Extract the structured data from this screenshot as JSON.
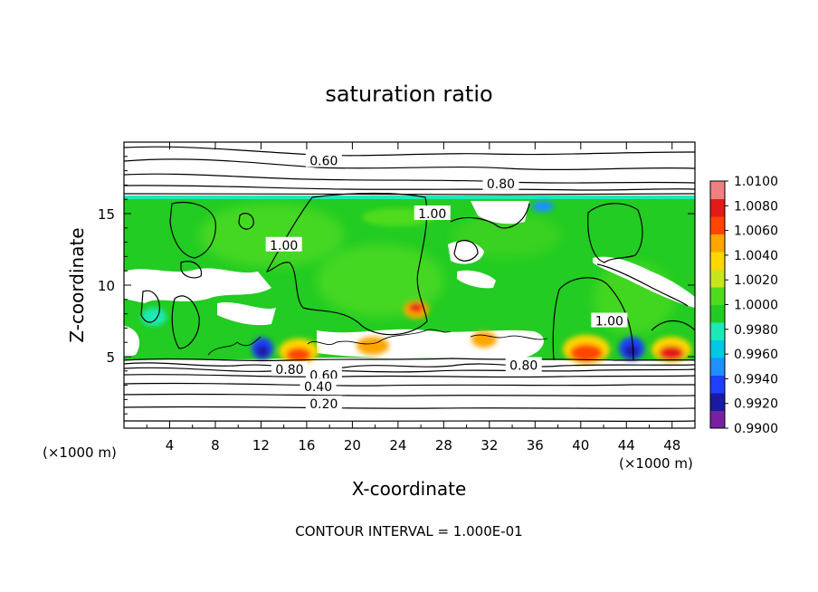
{
  "chart_data": {
    "type": "heatmap",
    "title": "saturation ratio",
    "xlabel": "X-coordinate",
    "ylabel": "Z-coordinate",
    "x_unit_note": "(×1000 m)",
    "y_unit_note": "(×1000 m)",
    "footer": "CONTOUR INTERVAL = 1.000E-01",
    "xlim": [
      0,
      50
    ],
    "ylim": [
      0,
      20
    ],
    "x_ticks": [
      "4",
      "8",
      "12",
      "16",
      "20",
      "24",
      "28",
      "32",
      "36",
      "40",
      "44",
      "48"
    ],
    "y_ticks": [
      "5",
      "10",
      "15"
    ],
    "colorbar": {
      "min": 0.99,
      "max": 1.01,
      "labels": [
        "1.0100",
        "1.0080",
        "1.0060",
        "1.0040",
        "1.0020",
        "1.0000",
        "0.9980",
        "0.9960",
        "0.9940",
        "0.9920",
        "0.9900"
      ],
      "colors": [
        "#7a1fa2",
        "#1a1aa0",
        "#1f3fff",
        "#1e90ff",
        "#00c8e6",
        "#1de9b6",
        "#22cc22",
        "#50dc1e",
        "#c8e61e",
        "#ffd700",
        "#ffa500",
        "#ff4500",
        "#e61919",
        "#f08080"
      ]
    },
    "contour_labels": [
      {
        "text": "0.60",
        "x": 17.5,
        "z": 18.7
      },
      {
        "text": "0.80",
        "x": 33.0,
        "z": 17.1
      },
      {
        "text": "1.00",
        "x": 27.0,
        "z": 15.0
      },
      {
        "text": "1.00",
        "x": 14.0,
        "z": 12.8
      },
      {
        "text": "1.00",
        "x": 42.5,
        "z": 7.5
      },
      {
        "text": "0.80",
        "x": 14.5,
        "z": 4.1
      },
      {
        "text": "0.60",
        "x": 17.5,
        "z": 3.7
      },
      {
        "text": "0.40",
        "x": 17.0,
        "z": 2.9
      },
      {
        "text": "0.20",
        "x": 17.5,
        "z": 1.7
      },
      {
        "text": "0.80",
        "x": 35.0,
        "z": 4.4
      }
    ],
    "field_summary": {
      "saturated_layer_z": [
        4.7,
        16.5
      ],
      "dominant_value": 1.0,
      "supersaturated_spots": [
        {
          "x": 14.5,
          "z": 5.0,
          "value": 1.008
        },
        {
          "x": 20.5,
          "z": 5.0,
          "value": 1.005
        },
        {
          "x": 25.5,
          "z": 8.0,
          "value": 1.009
        },
        {
          "x": 32.5,
          "z": 5.5,
          "value": 1.006
        },
        {
          "x": 40.5,
          "z": 5.2,
          "value": 1.009
        },
        {
          "x": 46.5,
          "z": 5.2,
          "value": 1.008
        }
      ],
      "subsaturated_spots": [
        {
          "x": 11.5,
          "z": 5.2,
          "value": 0.992
        },
        {
          "x": 44.5,
          "z": 5.2,
          "value": 0.991
        }
      ]
    }
  }
}
